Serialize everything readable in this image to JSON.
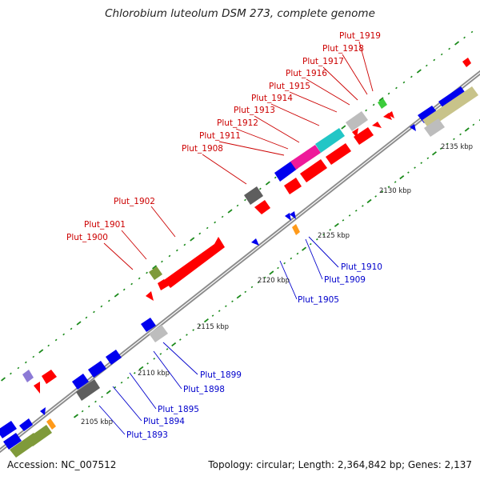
{
  "title": "Chlorobium luteolum DSM 273, complete genome",
  "footer": {
    "accession": "Accession: NC_007512",
    "topology": "Topology: circular; Length: 2,364,842 bp; Genes: 2,137"
  },
  "colors": {
    "backbone": "#8c8c8c",
    "tick": "#1a8a1a",
    "label_forward": "#cc0000",
    "label_reverse": "#0000cc",
    "red": "#ff0000",
    "blue": "#0000ee",
    "gray": "#bdbdbd",
    "dark_gray": "#5e5e5e",
    "olive": "#7f9a3a",
    "khaki": "#c8c38a",
    "cyan": "#22c6c6",
    "magenta": "#ee1a9a",
    "green": "#3ccc3c",
    "orange": "#ff9a1a",
    "purple": "#8c7ad6"
  },
  "kbp_labels": [
    "2105 kbp",
    "2110 kbp",
    "2115 kbp",
    "2120 kbp",
    "2125 kbp",
    "2130 kbp",
    "2135 kbp"
  ],
  "gene_labels": [
    {
      "text": "Plut_1919",
      "strand": "forward"
    },
    {
      "text": "Plut_1918",
      "strand": "forward"
    },
    {
      "text": "Plut_1917",
      "strand": "forward"
    },
    {
      "text": "Plut_1916",
      "strand": "forward"
    },
    {
      "text": "Plut_1915",
      "strand": "forward"
    },
    {
      "text": "Plut_1914",
      "strand": "forward"
    },
    {
      "text": "Plut_1913",
      "strand": "forward"
    },
    {
      "text": "Plut_1912",
      "strand": "forward"
    },
    {
      "text": "Plut_1911",
      "strand": "forward"
    },
    {
      "text": "Plut_1908",
      "strand": "forward"
    },
    {
      "text": "Plut_1902",
      "strand": "forward"
    },
    {
      "text": "Plut_1901",
      "strand": "forward"
    },
    {
      "text": "Plut_1900",
      "strand": "forward"
    },
    {
      "text": "Plut_1910",
      "strand": "reverse"
    },
    {
      "text": "Plut_1909",
      "strand": "reverse"
    },
    {
      "text": "Plut_1905",
      "strand": "reverse"
    },
    {
      "text": "Plut_1899",
      "strand": "reverse"
    },
    {
      "text": "Plut_1898",
      "strand": "reverse"
    },
    {
      "text": "Plut_1895",
      "strand": "reverse"
    },
    {
      "text": "Plut_1894",
      "strand": "reverse"
    },
    {
      "text": "Plut_1893",
      "strand": "reverse"
    }
  ]
}
